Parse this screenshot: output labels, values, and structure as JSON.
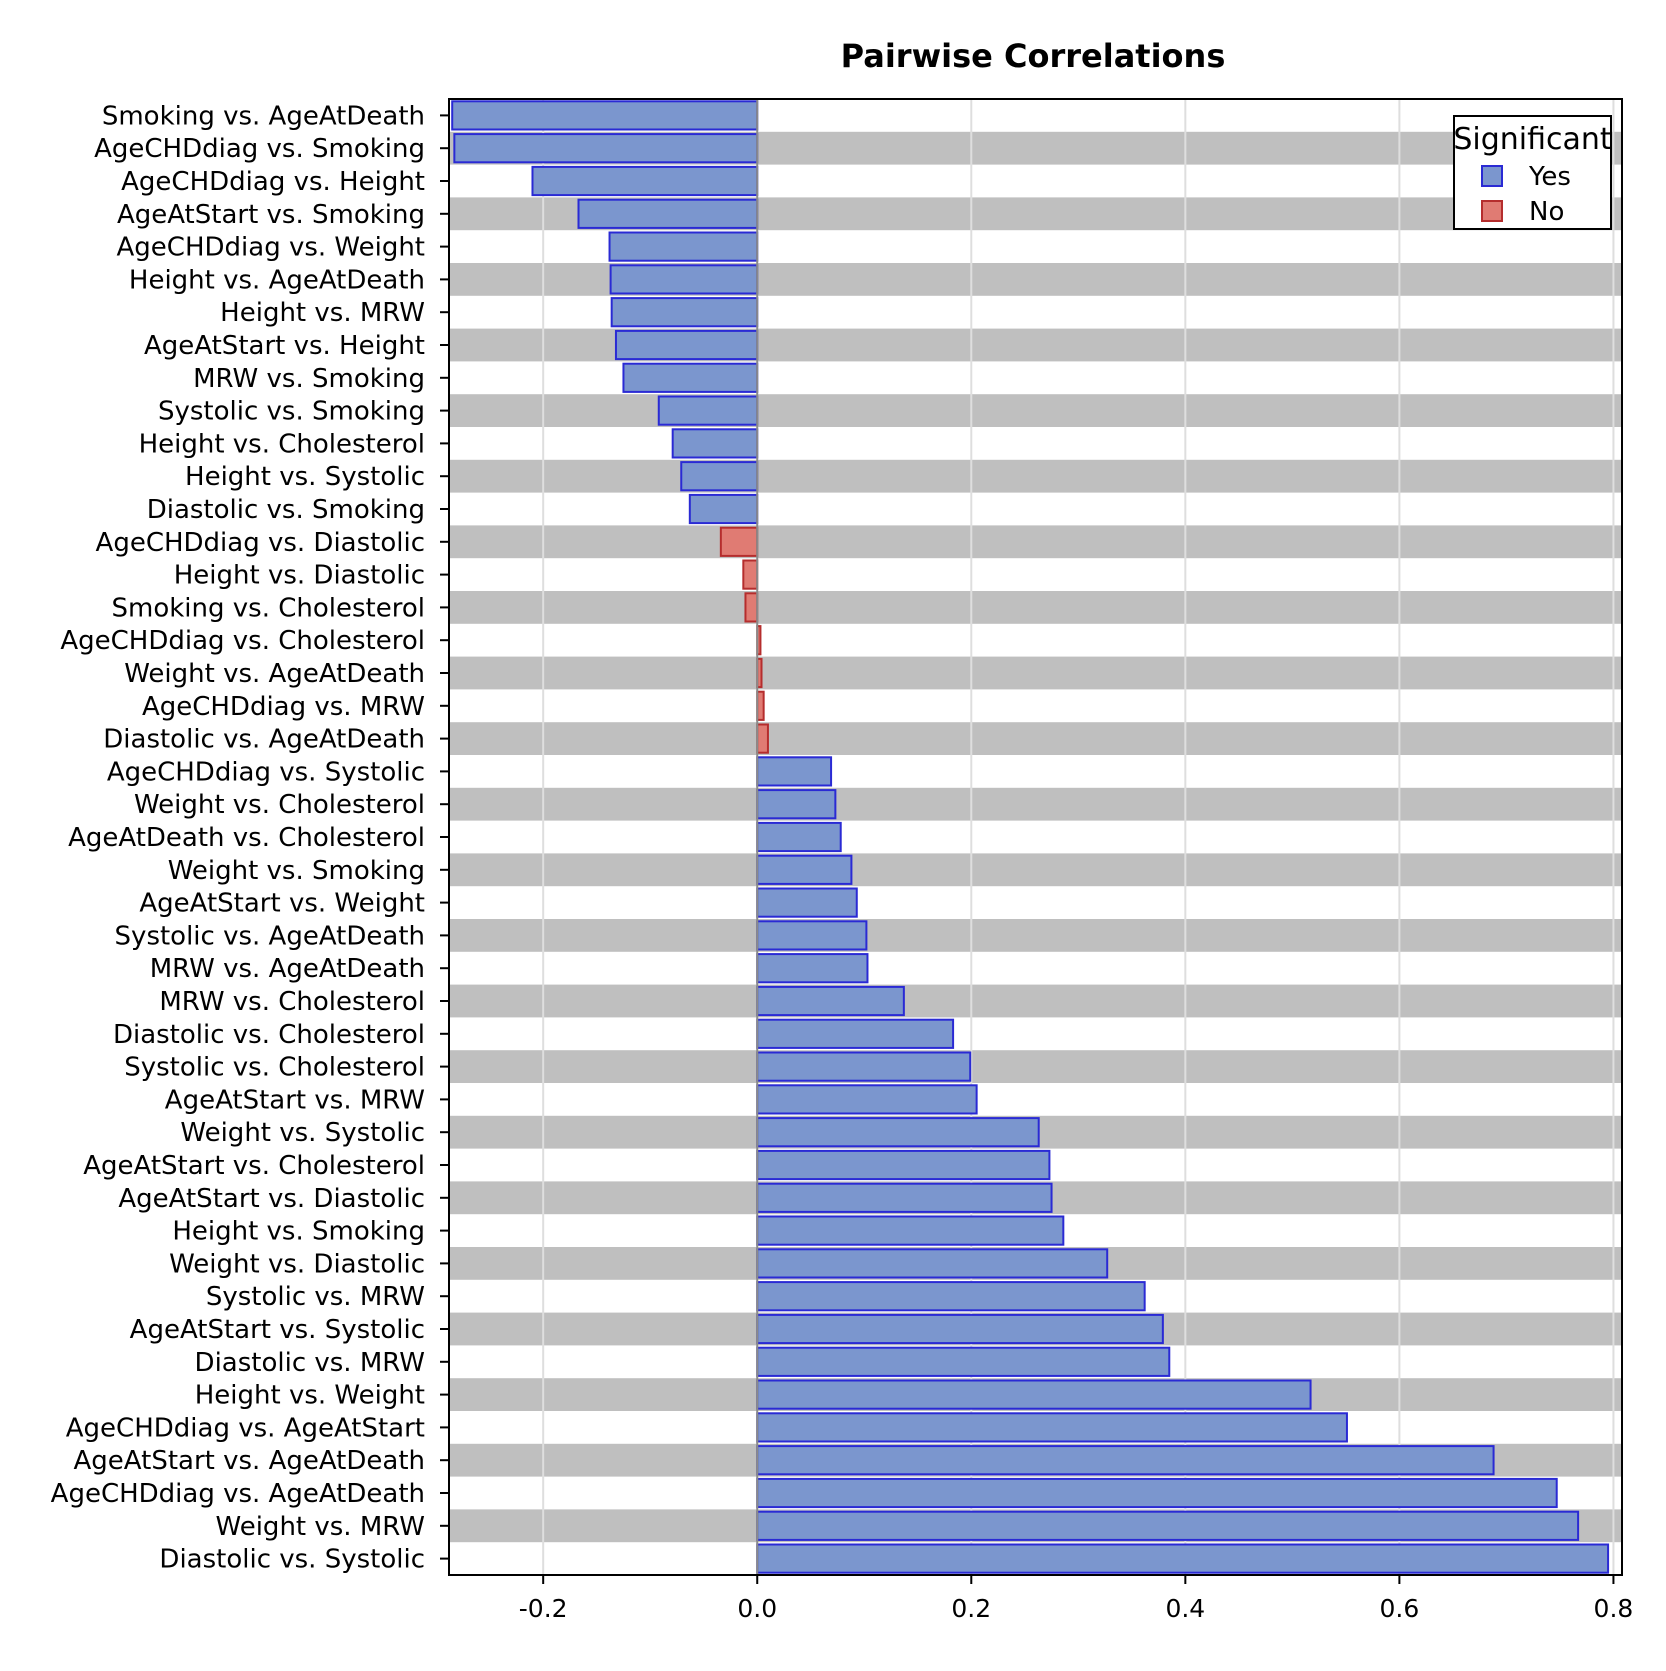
{
  "chart_data": {
    "type": "bar",
    "orientation": "horizontal",
    "title": "Pairwise Correlations",
    "xlabel": "",
    "ylabel": "",
    "xlim": [
      -0.288,
      0.808
    ],
    "x_ticks": [
      "-0.2",
      "0.0",
      "0.2",
      "0.4",
      "0.6",
      "0.8"
    ],
    "x_tick_values": [
      -0.2,
      0.0,
      0.2,
      0.4,
      0.6,
      0.8
    ],
    "grid": "vertical",
    "banded_rows": true,
    "band_color": "#bfbfbf",
    "legend": {
      "title": "Significant",
      "position": "top-right",
      "entries": [
        {
          "label": "Yes",
          "fill": "#7b96ce",
          "stroke": "#2a2ad4"
        },
        {
          "label": "No",
          "fill": "#e07b73",
          "stroke": "#b52d2d"
        }
      ]
    },
    "categories": [
      "Smoking vs. AgeAtDeath",
      "AgeCHDdiag vs. Smoking",
      "AgeCHDdiag vs. Height",
      "AgeAtStart vs. Smoking",
      "AgeCHDdiag vs. Weight",
      "Height vs. AgeAtDeath",
      "Height vs. MRW",
      "AgeAtStart vs. Height",
      "MRW vs. Smoking",
      "Systolic vs. Smoking",
      "Height vs. Cholesterol",
      "Height vs. Systolic",
      "Diastolic vs. Smoking",
      "AgeCHDdiag vs. Diastolic",
      "Height vs. Diastolic",
      "Smoking vs. Cholesterol",
      "AgeCHDdiag vs. Cholesterol",
      "Weight vs. AgeAtDeath",
      "AgeCHDdiag vs. MRW",
      "Diastolic vs. AgeAtDeath",
      "AgeCHDdiag vs. Systolic",
      "Weight vs. Cholesterol",
      "AgeAtDeath vs. Cholesterol",
      "Weight vs. Smoking",
      "AgeAtStart vs. Weight",
      "Systolic vs. AgeAtDeath",
      "MRW vs. AgeAtDeath",
      "MRW vs. Cholesterol",
      "Diastolic vs. Cholesterol",
      "Systolic vs. Cholesterol",
      "AgeAtStart vs. MRW",
      "Weight vs. Systolic",
      "AgeAtStart vs. Cholesterol",
      "AgeAtStart vs. Diastolic",
      "Height vs. Smoking",
      "Weight vs. Diastolic",
      "Systolic vs. MRW",
      "AgeAtStart vs. Systolic",
      "Diastolic vs. MRW",
      "Height vs. Weight",
      "AgeCHDdiag vs. AgeAtStart",
      "AgeAtStart vs. AgeAtDeath",
      "AgeCHDdiag vs. AgeAtDeath",
      "Weight vs. MRW",
      "Diastolic vs. Systolic"
    ],
    "values": [
      -0.285,
      -0.283,
      -0.21,
      -0.167,
      -0.138,
      -0.137,
      -0.136,
      -0.132,
      -0.125,
      -0.092,
      -0.079,
      -0.071,
      -0.063,
      -0.034,
      -0.013,
      -0.011,
      0.003,
      0.004,
      0.006,
      0.01,
      0.069,
      0.073,
      0.078,
      0.088,
      0.093,
      0.102,
      0.103,
      0.137,
      0.183,
      0.199,
      0.205,
      0.263,
      0.273,
      0.275,
      0.286,
      0.327,
      0.362,
      0.379,
      0.385,
      0.517,
      0.551,
      0.688,
      0.747,
      0.767,
      0.795
    ],
    "significant": [
      "Yes",
      "Yes",
      "Yes",
      "Yes",
      "Yes",
      "Yes",
      "Yes",
      "Yes",
      "Yes",
      "Yes",
      "Yes",
      "Yes",
      "Yes",
      "No",
      "No",
      "No",
      "No",
      "No",
      "No",
      "No",
      "Yes",
      "Yes",
      "Yes",
      "Yes",
      "Yes",
      "Yes",
      "Yes",
      "Yes",
      "Yes",
      "Yes",
      "Yes",
      "Yes",
      "Yes",
      "Yes",
      "Yes",
      "Yes",
      "Yes",
      "Yes",
      "Yes",
      "Yes",
      "Yes",
      "Yes",
      "Yes",
      "Yes",
      "Yes"
    ]
  }
}
